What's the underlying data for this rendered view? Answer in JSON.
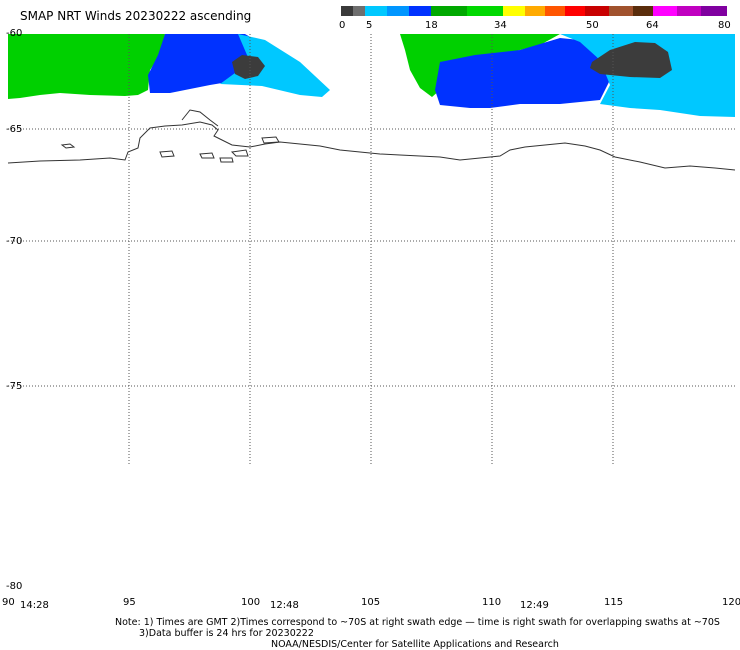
{
  "title": "SMAP NRT Winds 20230222 ascending",
  "colorbar": {
    "segments": [
      {
        "color": "#3a3a3a"
      },
      {
        "color": "#6e6e6e"
      },
      {
        "color": "#00c8ff"
      },
      {
        "color": "#0096ff"
      },
      {
        "color": "#0032ff"
      },
      {
        "color": "#00a800"
      },
      {
        "color": "#00d800"
      },
      {
        "color": "#ffff00"
      },
      {
        "color": "#ffaa00"
      },
      {
        "color": "#ff5500"
      },
      {
        "color": "#ff0000"
      },
      {
        "color": "#c80000"
      },
      {
        "color": "#a0522d"
      },
      {
        "color": "#5a2d0c"
      },
      {
        "color": "#ff00ff"
      },
      {
        "color": "#c000c0"
      },
      {
        "color": "#8000a0"
      }
    ],
    "labels": [
      "0",
      "5",
      "18",
      "34",
      "50",
      "64",
      "80"
    ]
  },
  "lat_labels": [
    "-60",
    "-65",
    "-70",
    "-75",
    "-80"
  ],
  "lon_labels": [
    "90",
    "95",
    "100",
    "105",
    "110",
    "115",
    "120"
  ],
  "time_labels": [
    "14:28",
    "12:48",
    "12:49"
  ],
  "notes": {
    "line1": "Note: 1) Times are GMT 2)Times correspond to ~70S at right swath edge — time is right swath for overlapping swaths at ~70S",
    "line2": "3)Data buffer is 24 hrs for 20230222",
    "line3": "NOAA/NESDIS/Center for Satellite Applications and Research"
  },
  "wind_colors": {
    "calm": "#3c3c3c",
    "light": "#00c8ff",
    "moderate": "#0032ff",
    "strong": "#00d000"
  }
}
